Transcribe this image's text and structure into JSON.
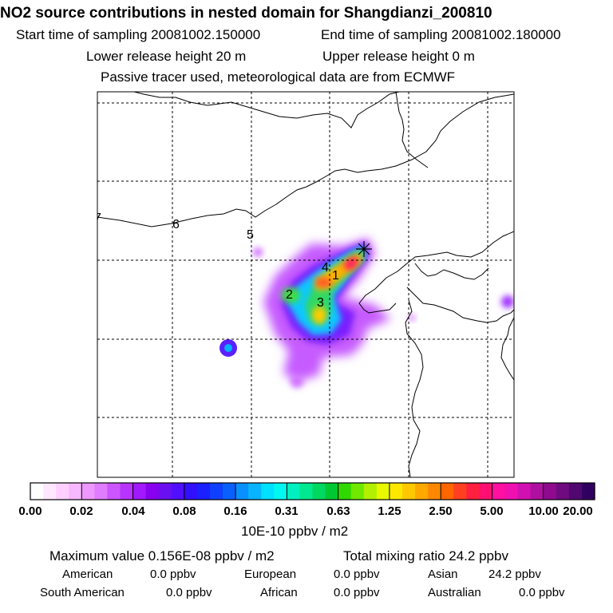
{
  "title": "NO2 source contributions in nested domain for Shangdianzi_200810",
  "header": {
    "start": "Start time of sampling 20081002.150000",
    "end": "End time of sampling 20081002.180000",
    "lower": "Lower release height   20 m",
    "upper": "Upper release height    0 m",
    "note": "Passive tracer used, meteorological data are from ECMWF"
  },
  "map": {
    "source_labels": [
      "1",
      "2",
      "3",
      "4",
      "5",
      "6",
      "7"
    ],
    "receptor_marker": "star"
  },
  "colorbar": {
    "ticks": [
      "0.00",
      "0.02",
      "0.04",
      "0.08",
      "0.16",
      "0.31",
      "0.63",
      "1.25",
      "2.50",
      "5.00",
      "10.00",
      "20.00"
    ],
    "colors": [
      "#ffffff",
      "#ffe8ff",
      "#ffd0ff",
      "#f8b8ff",
      "#ee98ff",
      "#e07cff",
      "#cc55ff",
      "#b933ff",
      "#a019ff",
      "#8800ee",
      "#6a10f0",
      "#5010ff",
      "#3010ff",
      "#1a20ff",
      "#1040ff",
      "#0a60ff",
      "#0890ff",
      "#08b4ff",
      "#00e0ff",
      "#00f8f0",
      "#00f0c0",
      "#00e890",
      "#00d860",
      "#00c830",
      "#30d800",
      "#70e800",
      "#b0f000",
      "#e8f800",
      "#ffe800",
      "#ffc800",
      "#ffa800",
      "#ff8800",
      "#ff6600",
      "#ff4020",
      "#ff2040",
      "#ff1070",
      "#ff10a0",
      "#f010b0",
      "#d010b0",
      "#b010a0",
      "#900a90",
      "#700a80",
      "#500870",
      "#300060"
    ],
    "unit": "10E-10 ppbv / m2"
  },
  "summary": {
    "maximum": "Maximum value  0.156E-08 ppbv / m2",
    "total": "Total mixing ratio      24.2 ppbv",
    "regions": [
      {
        "name": "American",
        "value": "0.0 ppbv"
      },
      {
        "name": "European",
        "value": "0.0 ppbv"
      },
      {
        "name": "Asian",
        "value": "24.2 ppbv"
      },
      {
        "name": "South American",
        "value": "0.0 ppbv"
      },
      {
        "name": "African",
        "value": "0.0 ppbv"
      },
      {
        "name": "Australian",
        "value": "0.0 ppbv"
      }
    ]
  },
  "chart_data": {
    "type": "heatmap",
    "title": "NO2 source contributions in nested domain for Shangdianzi_200810",
    "colorbar_levels": [
      0.0,
      0.02,
      0.04,
      0.08,
      0.16,
      0.31,
      0.63,
      1.25,
      2.5,
      5.0,
      10.0,
      20.0
    ],
    "colorbar_unit": "10E-10 ppbv / m2",
    "maximum_value": "0.156E-08 ppbv / m2",
    "total_mixing_ratio_ppbv": 24.2
  }
}
